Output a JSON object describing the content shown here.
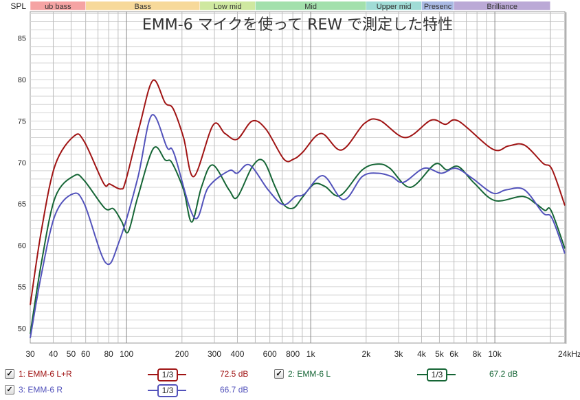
{
  "chart_data": {
    "type": "line",
    "title": "EMM-6 マイクを使って REW で測定した特性",
    "ylabel": "SPL",
    "xunit": "kHz",
    "xscale": "log",
    "xlim": [
      30,
      24000
    ],
    "ylim": [
      48.2,
      88.2
    ],
    "grid": true,
    "x_ticks": [
      {
        "v": 30,
        "l": "30"
      },
      {
        "v": 40,
        "l": "40"
      },
      {
        "v": 50,
        "l": "50"
      },
      {
        "v": 60,
        "l": "60"
      },
      {
        "v": 80,
        "l": "80"
      },
      {
        "v": 100,
        "l": "100"
      },
      {
        "v": 200,
        "l": "200"
      },
      {
        "v": 300,
        "l": "300"
      },
      {
        "v": 400,
        "l": "400"
      },
      {
        "v": 600,
        "l": "600"
      },
      {
        "v": 800,
        "l": "800"
      },
      {
        "v": 1000,
        "l": "1k"
      },
      {
        "v": 2000,
        "l": "2k"
      },
      {
        "v": 3000,
        "l": "3k"
      },
      {
        "v": 4000,
        "l": "4k"
      },
      {
        "v": 5000,
        "l": "5k"
      },
      {
        "v": 6000,
        "l": "6k"
      },
      {
        "v": 8000,
        "l": "8k"
      },
      {
        "v": 10000,
        "l": "10k"
      },
      {
        "v": 24000,
        "l": "24kHz"
      }
    ],
    "y_ticks": [
      50,
      55,
      60,
      65,
      70,
      75,
      80,
      85
    ],
    "bands": [
      {
        "name": "ub bass",
        "from": 30,
        "to": 60,
        "color": "#f5a3a3"
      },
      {
        "name": "Bass",
        "from": 60,
        "to": 250,
        "color": "#f7d99a"
      },
      {
        "name": "Low mid",
        "from": 250,
        "to": 500,
        "color": "#cfe8a0"
      },
      {
        "name": "Mid",
        "from": 500,
        "to": 2000,
        "color": "#a3e0ac"
      },
      {
        "name": "Upper mid",
        "from": 2000,
        "to": 4000,
        "color": "#a0dcd6"
      },
      {
        "name": "Presenc",
        "from": 4000,
        "to": 6000,
        "color": "#a9b9e3"
      },
      {
        "name": "Brilliance",
        "from": 6000,
        "to": 20000,
        "color": "#bba9d6"
      }
    ],
    "series": [
      {
        "name": "1: EMM-6 L+R",
        "color": "#a01414",
        "smoothing": "1/3",
        "level": "72.5 dB",
        "points": [
          [
            30,
            52.8
          ],
          [
            34.5,
            61.8
          ],
          [
            41,
            69.7
          ],
          [
            52,
            73.2
          ],
          [
            59,
            72.5
          ],
          [
            75,
            67.5
          ],
          [
            81,
            67.4
          ],
          [
            93,
            66.8
          ],
          [
            99,
            67.8
          ],
          [
            118,
            74.5
          ],
          [
            139,
            79.9
          ],
          [
            162,
            77.2
          ],
          [
            179,
            76.5
          ],
          [
            204,
            73.0
          ],
          [
            232,
            68.3
          ],
          [
            295,
            74.5
          ],
          [
            342,
            73.5
          ],
          [
            399,
            72.8
          ],
          [
            482,
            75.0
          ],
          [
            572,
            74.0
          ],
          [
            715,
            70.4
          ],
          [
            807,
            70.4
          ],
          [
            902,
            71.2
          ],
          [
            1138,
            73.5
          ],
          [
            1471,
            71.5
          ],
          [
            1955,
            74.7
          ],
          [
            2360,
            75.1
          ],
          [
            3270,
            73.0
          ],
          [
            4500,
            75.1
          ],
          [
            5380,
            74.6
          ],
          [
            6340,
            75.0
          ],
          [
            9740,
            71.6
          ],
          [
            11880,
            72.0
          ],
          [
            14460,
            72.1
          ],
          [
            18250,
            69.9
          ],
          [
            20400,
            69.2
          ],
          [
            24000,
            64.8
          ]
        ]
      },
      {
        "name": "2: EMM-6 L",
        "color": "#156535",
        "smoothing": "1/3",
        "level": "67.2 dB",
        "points": [
          [
            30,
            49.3
          ],
          [
            34.5,
            57.9
          ],
          [
            41,
            65.8
          ],
          [
            52,
            68.4
          ],
          [
            59,
            67.8
          ],
          [
            76,
            64.5
          ],
          [
            85,
            64.4
          ],
          [
            94,
            62.9
          ],
          [
            102,
            61.6
          ],
          [
            115,
            65.8
          ],
          [
            140,
            71.7
          ],
          [
            162,
            70.3
          ],
          [
            176,
            70.0
          ],
          [
            204,
            66.7
          ],
          [
            226,
            62.8
          ],
          [
            255,
            67.0
          ],
          [
            293,
            69.7
          ],
          [
            360,
            66.7
          ],
          [
            399,
            65.8
          ],
          [
            482,
            69.5
          ],
          [
            553,
            70.2
          ],
          [
            640,
            67.1
          ],
          [
            715,
            64.9
          ],
          [
            807,
            64.5
          ],
          [
            902,
            65.8
          ],
          [
            1044,
            67.4
          ],
          [
            1197,
            67.1
          ],
          [
            1445,
            66.0
          ],
          [
            1905,
            69.1
          ],
          [
            2320,
            69.8
          ],
          [
            2690,
            69.3
          ],
          [
            3480,
            67.0
          ],
          [
            4730,
            69.8
          ],
          [
            5480,
            69.1
          ],
          [
            6340,
            69.5
          ],
          [
            7730,
            67.5
          ],
          [
            10000,
            65.4
          ],
          [
            14100,
            65.9
          ],
          [
            16740,
            65.0
          ],
          [
            18700,
            64.2
          ],
          [
            20200,
            64.2
          ],
          [
            24000,
            59.6
          ]
        ]
      },
      {
        "name": "3: EMM-6 R",
        "color": "#5252bb",
        "smoothing": "1/3",
        "level": "66.7 dB",
        "points": [
          [
            30,
            48.8
          ],
          [
            34.5,
            56.5
          ],
          [
            41,
            63.7
          ],
          [
            51,
            66.2
          ],
          [
            59,
            65.0
          ],
          [
            77,
            57.9
          ],
          [
            91,
            60.4
          ],
          [
            115,
            68.1
          ],
          [
            137,
            75.7
          ],
          [
            166,
            71.8
          ],
          [
            181,
            71.1
          ],
          [
            234,
            63.3
          ],
          [
            278,
            67.0
          ],
          [
            360,
            69.0
          ],
          [
            399,
            68.7
          ],
          [
            466,
            69.7
          ],
          [
            587,
            66.7
          ],
          [
            709,
            64.9
          ],
          [
            828,
            65.9
          ],
          [
            926,
            66.2
          ],
          [
            1167,
            68.4
          ],
          [
            1510,
            65.5
          ],
          [
            1905,
            68.3
          ],
          [
            2320,
            68.7
          ],
          [
            2750,
            68.3
          ],
          [
            3190,
            67.6
          ],
          [
            4130,
            69.3
          ],
          [
            5120,
            68.7
          ],
          [
            6130,
            69.3
          ],
          [
            7530,
            68.1
          ],
          [
            9740,
            66.3
          ],
          [
            11560,
            66.7
          ],
          [
            14460,
            66.7
          ],
          [
            18250,
            63.9
          ],
          [
            20400,
            63.3
          ],
          [
            24000,
            59.0
          ]
        ]
      }
    ]
  },
  "legend": {
    "check_mark": "✓",
    "smoothing_label": "1/3"
  }
}
